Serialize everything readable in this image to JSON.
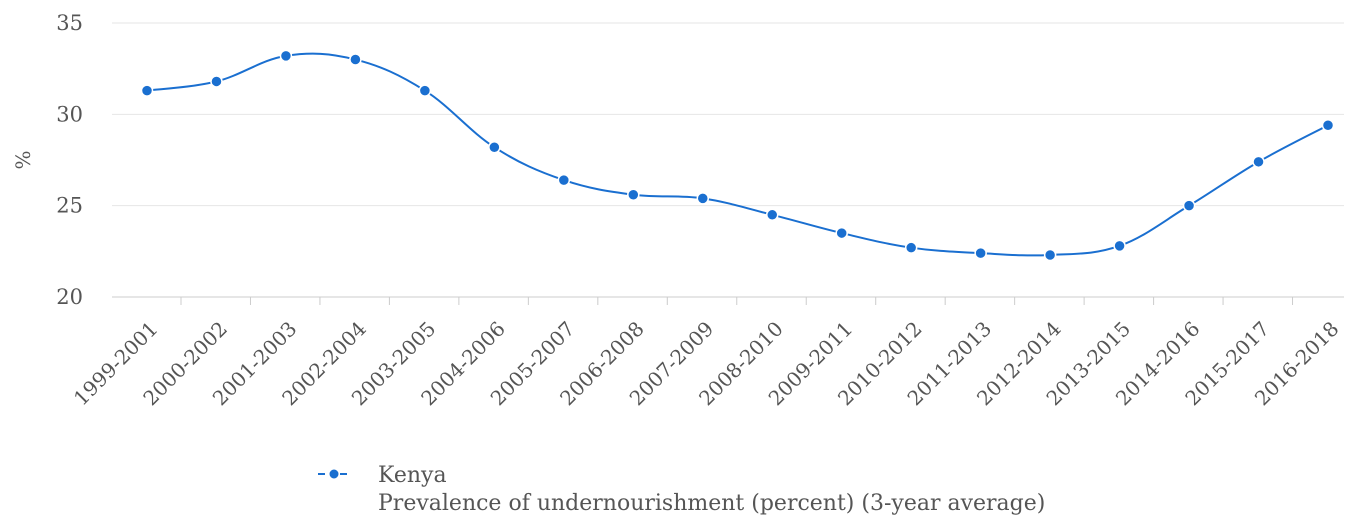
{
  "chart_data": {
    "type": "line",
    "ylabel": "%",
    "ylim": [
      20,
      35
    ],
    "yticks": [
      20,
      25,
      30,
      35
    ],
    "grid": true,
    "legend_position": "bottom",
    "categories": [
      "1999-2001",
      "2000-2002",
      "2001-2003",
      "2002-2004",
      "2003-2005",
      "2004-2006",
      "2005-2007",
      "2006-2008",
      "2007-2009",
      "2008-2010",
      "2009-2011",
      "2010-2012",
      "2011-2013",
      "2012-2014",
      "2013-2015",
      "2014-2016",
      "2015-2017",
      "2016-2018"
    ],
    "series": [
      {
        "name": "Kenya",
        "subtitle": "Prevalence of undernourishment (percent) (3-year average)",
        "color": "#1a6fd0",
        "values": [
          31.3,
          31.8,
          33.2,
          33.0,
          31.3,
          28.2,
          26.4,
          25.6,
          25.4,
          24.5,
          23.5,
          22.7,
          22.4,
          22.3,
          22.8,
          25.0,
          27.4,
          29.4
        ]
      }
    ]
  }
}
